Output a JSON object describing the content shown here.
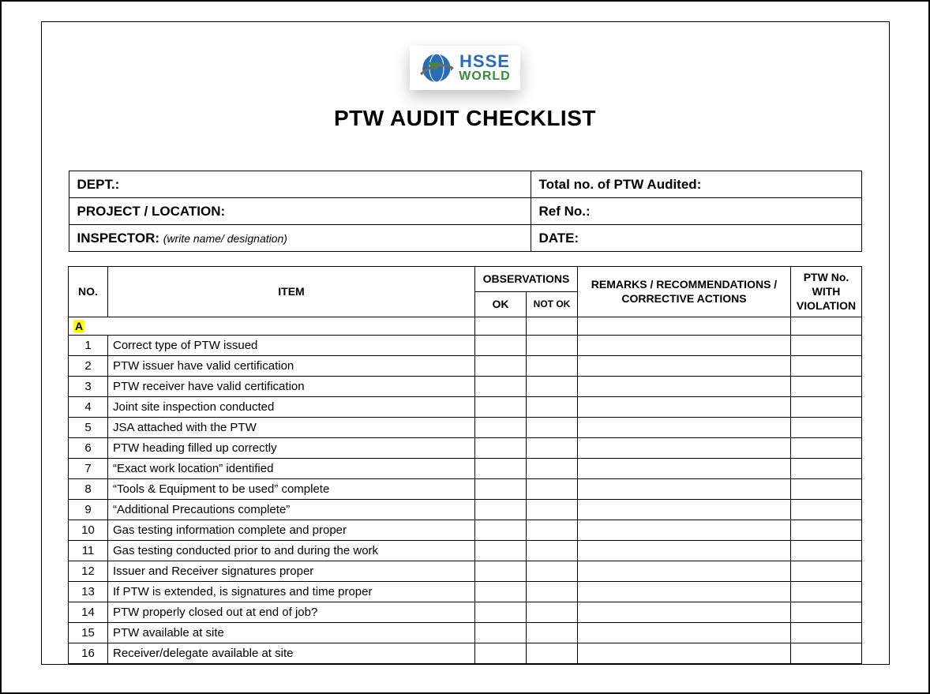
{
  "logo": {
    "line1": "HSSE",
    "line2": "WORLD",
    "colors": {
      "line1": "#2a6bb3",
      "line2": "#3a8b3a",
      "globe_fill": "#2a6bb3",
      "swoosh": "#6b6b6b"
    }
  },
  "title": "PTW AUDIT CHECKLIST",
  "header": {
    "dept_label": "DEPT.:",
    "total_label": "Total no. of PTW Audited:",
    "project_label": "PROJECT / LOCATION:",
    "ref_label": "Ref No.:",
    "inspector_label": "INSPECTOR:",
    "inspector_hint": "(write name/ designation)",
    "date_label": "DATE:"
  },
  "table_head": {
    "no": "NO.",
    "item": "ITEM",
    "observations": "OBSERVATIONS",
    "ok": "OK",
    "not_ok": "NOT OK",
    "remarks": "REMARKS / RECOMMENDATIONS / CORRECTIVE ACTIONS",
    "ptw_no": "PTW No. WITH VIOLATION"
  },
  "section_label": "A",
  "rows": [
    {
      "no": "1",
      "item": "Correct type of PTW issued"
    },
    {
      "no": "2",
      "item": "PTW issuer have valid certification"
    },
    {
      "no": "3",
      "item": "PTW receiver have valid certification"
    },
    {
      "no": "4",
      "item": "Joint site inspection conducted"
    },
    {
      "no": "5",
      "item": "JSA attached with the PTW"
    },
    {
      "no": "6",
      "item": "PTW heading filled up correctly"
    },
    {
      "no": "7",
      "item": "“Exact work location” identified"
    },
    {
      "no": "8",
      "item": "“Tools & Equipment to be used” complete"
    },
    {
      "no": "9",
      "item": "“Additional Precautions complete”"
    },
    {
      "no": "10",
      "item": "Gas testing information  complete and proper"
    },
    {
      "no": "11",
      "item": "Gas testing conducted prior to and during the work"
    },
    {
      "no": "12",
      "item": "Issuer and Receiver signatures proper"
    },
    {
      "no": "13",
      "item": "If PTW is extended, is signatures and time proper"
    },
    {
      "no": "14",
      "item": "PTW properly closed out at end of job?"
    },
    {
      "no": "15",
      "item": "PTW available at site"
    },
    {
      "no": "16",
      "item": "Receiver/delegate available at site"
    }
  ],
  "style": {
    "highlight_bg": "#ffff00",
    "border_color": "#000000",
    "title_fontsize": 28,
    "header_fontsize": 17,
    "body_fontsize": 15
  }
}
